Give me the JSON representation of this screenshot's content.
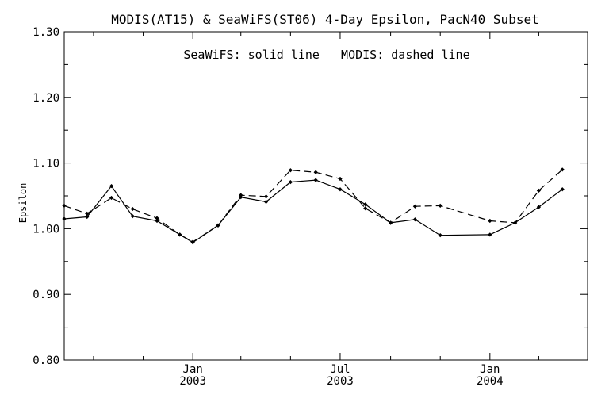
{
  "chart_data": {
    "type": "line",
    "title": "MODIS(AT15) & SeaWiFS(ST06) 4-Day Epsilon, PacN40 Subset",
    "annotation": "SeaWiFS: solid line   MODIS: dashed line",
    "ylabel": "Epsilon",
    "xlabel": "",
    "ylim": [
      0.8,
      1.3
    ],
    "y_ticks": [
      "0.80",
      "0.90",
      "1.00",
      "1.10",
      "1.20",
      "1.30"
    ],
    "xlim": [
      "2002-07-27",
      "2004-04-30"
    ],
    "x_ticks": [
      {
        "date": "2003-01-01",
        "line1": "Jan",
        "line2": "2003"
      },
      {
        "date": "2003-07-01",
        "line1": "Jul",
        "line2": "2003"
      },
      {
        "date": "2004-01-01",
        "line1": "Jan",
        "line2": "2004"
      }
    ],
    "grid": false,
    "series": [
      {
        "name": "SeaWiFS",
        "style": "solid",
        "color": "#000000",
        "points": [
          {
            "x": "2002-07-27",
            "y": 1.015
          },
          {
            "x": "2002-08-24",
            "y": 1.018
          },
          {
            "x": "2002-09-23",
            "y": 1.065
          },
          {
            "x": "2002-10-19",
            "y": 1.019
          },
          {
            "x": "2002-11-18",
            "y": 1.012
          },
          {
            "x": "2002-12-16",
            "y": 0.991
          },
          {
            "x": "2003-01-01",
            "y": 0.979
          },
          {
            "x": "2003-02-01",
            "y": 1.005
          },
          {
            "x": "2003-03-01",
            "y": 1.048
          },
          {
            "x": "2003-04-01",
            "y": 1.041
          },
          {
            "x": "2003-05-01",
            "y": 1.071
          },
          {
            "x": "2003-06-01",
            "y": 1.074
          },
          {
            "x": "2003-07-01",
            "y": 1.06
          },
          {
            "x": "2003-08-01",
            "y": 1.037
          },
          {
            "x": "2003-09-01",
            "y": 1.009
          },
          {
            "x": "2003-10-01",
            "y": 1.014
          },
          {
            "x": "2003-11-01",
            "y": 0.99
          },
          {
            "x": "2004-01-01",
            "y": 0.991
          },
          {
            "x": "2004-02-01",
            "y": 1.009
          },
          {
            "x": "2004-03-01",
            "y": 1.033
          },
          {
            "x": "2004-03-30",
            "y": 1.06
          }
        ]
      },
      {
        "name": "MODIS",
        "style": "dashed",
        "color": "#000000",
        "points": [
          {
            "x": "2002-07-27",
            "y": 1.035
          },
          {
            "x": "2002-08-24",
            "y": 1.023
          },
          {
            "x": "2002-09-23",
            "y": 1.047
          },
          {
            "x": "2002-10-19",
            "y": 1.03
          },
          {
            "x": "2002-11-18",
            "y": 1.016
          },
          {
            "x": "2002-12-16",
            "y": 0.991
          },
          {
            "x": "2003-01-01",
            "y": 0.98
          },
          {
            "x": "2003-02-01",
            "y": 1.005
          },
          {
            "x": "2003-03-01",
            "y": 1.051
          },
          {
            "x": "2003-04-01",
            "y": 1.049
          },
          {
            "x": "2003-05-01",
            "y": 1.089
          },
          {
            "x": "2003-06-01",
            "y": 1.086
          },
          {
            "x": "2003-07-01",
            "y": 1.076
          },
          {
            "x": "2003-08-01",
            "y": 1.031
          },
          {
            "x": "2003-09-01",
            "y": 1.009
          },
          {
            "x": "2003-10-01",
            "y": 1.034
          },
          {
            "x": "2003-11-01",
            "y": 1.035
          },
          {
            "x": "2004-01-01",
            "y": 1.012
          },
          {
            "x": "2004-02-01",
            "y": 1.009
          },
          {
            "x": "2004-03-01",
            "y": 1.058
          },
          {
            "x": "2004-03-30",
            "y": 1.09
          }
        ]
      }
    ]
  }
}
